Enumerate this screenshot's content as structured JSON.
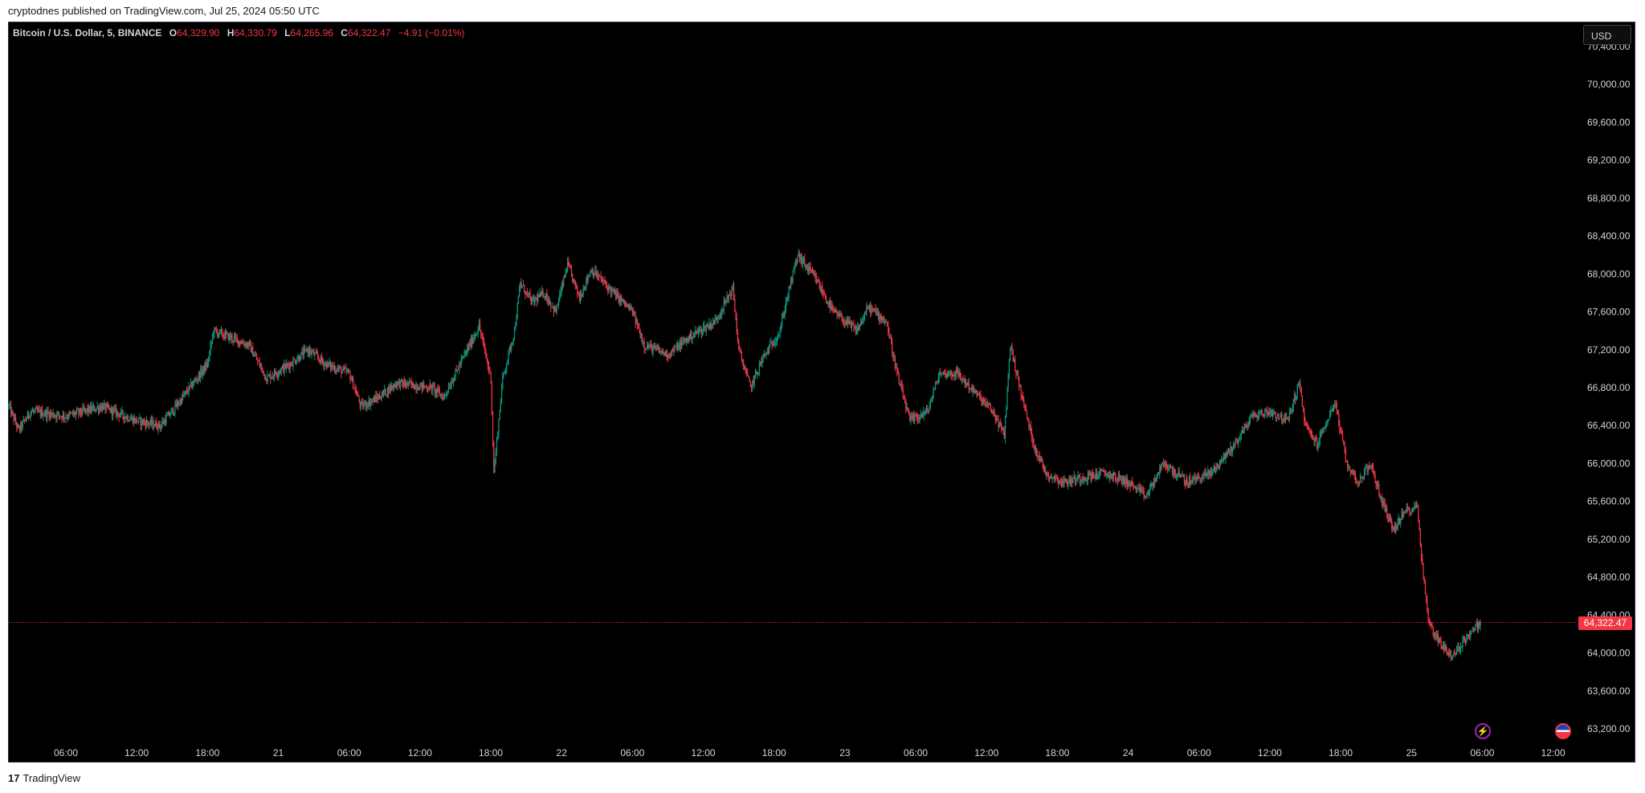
{
  "header": {
    "published_text": "cryptodnes published on TradingView.com, Jul 25, 2024 05:50 UTC"
  },
  "legend": {
    "symbol": "Bitcoin / U.S. Dollar, 5, BINANCE",
    "open_label": "O",
    "open": "64,329.90",
    "high_label": "H",
    "high": "64,330.79",
    "low_label": "L",
    "low": "64,265.96",
    "close_label": "C",
    "close": "64,322.47",
    "change": "−4.91 (−0.01%)"
  },
  "price_scale": {
    "currency": "USD",
    "last_price_label": "64,322.47"
  },
  "footer": {
    "brand": "TradingView",
    "logo_glyph": "17"
  },
  "icons": {
    "events": "lightning-icon",
    "economic": "us-flag-icon"
  },
  "colors": {
    "up": "#089981",
    "down": "#f23645",
    "background": "#000000",
    "axis_text": "#d1d4dc"
  },
  "chart_data": {
    "type": "candlestick",
    "symbol": "Bitcoin / U.S. Dollar",
    "interval": "5",
    "exchange": "BINANCE",
    "y_ticks": [
      70400,
      70000,
      69600,
      69200,
      68800,
      68400,
      68000,
      67600,
      67200,
      66800,
      66400,
      66000,
      65600,
      65200,
      64800,
      64400,
      64000,
      63600,
      63200
    ],
    "y_tick_labels": [
      "70,400.00",
      "70,000.00",
      "69,600.00",
      "69,200.00",
      "68,800.00",
      "68,400.00",
      "68,000.00",
      "67,600.00",
      "67,200.00",
      "66,800.00",
      "66,400.00",
      "66,000.00",
      "65,600.00",
      "65,200.00",
      "64,800.00",
      "64,400.00",
      "64,000.00",
      "63,600.00",
      "63,200.00"
    ],
    "ylim": [
      63100,
      70450
    ],
    "x_range": [
      "2024-07-20T01:10",
      "2024-07-25T14:00"
    ],
    "x_ticks": [
      {
        "t": "2024-07-20T06:00",
        "label": "06:00"
      },
      {
        "t": "2024-07-20T12:00",
        "label": "12:00"
      },
      {
        "t": "2024-07-20T18:00",
        "label": "18:00"
      },
      {
        "t": "2024-07-21T00:00",
        "label": "21"
      },
      {
        "t": "2024-07-21T06:00",
        "label": "06:00"
      },
      {
        "t": "2024-07-21T12:00",
        "label": "12:00"
      },
      {
        "t": "2024-07-21T18:00",
        "label": "18:00"
      },
      {
        "t": "2024-07-22T00:00",
        "label": "22"
      },
      {
        "t": "2024-07-22T06:00",
        "label": "06:00"
      },
      {
        "t": "2024-07-22T12:00",
        "label": "12:00"
      },
      {
        "t": "2024-07-22T18:00",
        "label": "18:00"
      },
      {
        "t": "2024-07-23T00:00",
        "label": "23"
      },
      {
        "t": "2024-07-23T06:00",
        "label": "06:00"
      },
      {
        "t": "2024-07-23T12:00",
        "label": "12:00"
      },
      {
        "t": "2024-07-23T18:00",
        "label": "18:00"
      },
      {
        "t": "2024-07-24T00:00",
        "label": "24"
      },
      {
        "t": "2024-07-24T06:00",
        "label": "06:00"
      },
      {
        "t": "2024-07-24T12:00",
        "label": "12:00"
      },
      {
        "t": "2024-07-24T18:00",
        "label": "18:00"
      },
      {
        "t": "2024-07-25T00:00",
        "label": "25"
      },
      {
        "t": "2024-07-25T06:00",
        "label": "06:00"
      },
      {
        "t": "2024-07-25T12:00",
        "label": "12:00"
      }
    ],
    "last_price": 64322.47,
    "series": [
      {
        "name": "Bitcoin / U.S. Dollar",
        "price_path": [
          {
            "t": "2024-07-20T01:10",
            "p": 66600
          },
          {
            "t": "2024-07-20T02:00",
            "p": 66350
          },
          {
            "t": "2024-07-20T03:00",
            "p": 66550
          },
          {
            "t": "2024-07-20T06:00",
            "p": 66500
          },
          {
            "t": "2024-07-20T09:00",
            "p": 66600
          },
          {
            "t": "2024-07-20T12:00",
            "p": 66450
          },
          {
            "t": "2024-07-20T14:00",
            "p": 66400
          },
          {
            "t": "2024-07-20T15:00",
            "p": 66550
          },
          {
            "t": "2024-07-20T16:30",
            "p": 66800
          },
          {
            "t": "2024-07-20T18:00",
            "p": 67050
          },
          {
            "t": "2024-07-20T18:30",
            "p": 67400
          },
          {
            "t": "2024-07-20T19:30",
            "p": 67350
          },
          {
            "t": "2024-07-20T21:30",
            "p": 67250
          },
          {
            "t": "2024-07-20T23:00",
            "p": 66900
          },
          {
            "t": "2024-07-21T01:00",
            "p": 67050
          },
          {
            "t": "2024-07-21T02:30",
            "p": 67200
          },
          {
            "t": "2024-07-21T04:00",
            "p": 67050
          },
          {
            "t": "2024-07-21T06:00",
            "p": 66950
          },
          {
            "t": "2024-07-21T07:00",
            "p": 66600
          },
          {
            "t": "2024-07-21T08:30",
            "p": 66700
          },
          {
            "t": "2024-07-21T10:00",
            "p": 66850
          },
          {
            "t": "2024-07-21T13:00",
            "p": 66800
          },
          {
            "t": "2024-07-21T14:00",
            "p": 66700
          },
          {
            "t": "2024-07-21T16:00",
            "p": 67200
          },
          {
            "t": "2024-07-21T17:00",
            "p": 67450
          },
          {
            "t": "2024-07-21T18:00",
            "p": 66900
          },
          {
            "t": "2024-07-21T18:15",
            "p": 65900
          },
          {
            "t": "2024-07-21T19:00",
            "p": 66900
          },
          {
            "t": "2024-07-21T20:00",
            "p": 67400
          },
          {
            "t": "2024-07-21T20:30",
            "p": 67900
          },
          {
            "t": "2024-07-21T21:30",
            "p": 67700
          },
          {
            "t": "2024-07-21T22:30",
            "p": 67800
          },
          {
            "t": "2024-07-21T23:30",
            "p": 67600
          },
          {
            "t": "2024-07-22T00:30",
            "p": 68100
          },
          {
            "t": "2024-07-22T01:30",
            "p": 67750
          },
          {
            "t": "2024-07-22T02:30",
            "p": 68050
          },
          {
            "t": "2024-07-22T04:00",
            "p": 67850
          },
          {
            "t": "2024-07-22T06:00",
            "p": 67600
          },
          {
            "t": "2024-07-22T07:00",
            "p": 67250
          },
          {
            "t": "2024-07-22T09:00",
            "p": 67150
          },
          {
            "t": "2024-07-22T11:00",
            "p": 67350
          },
          {
            "t": "2024-07-22T13:00",
            "p": 67500
          },
          {
            "t": "2024-07-22T14:30",
            "p": 67850
          },
          {
            "t": "2024-07-22T15:00",
            "p": 67200
          },
          {
            "t": "2024-07-22T16:00",
            "p": 66800
          },
          {
            "t": "2024-07-22T17:00",
            "p": 67100
          },
          {
            "t": "2024-07-22T18:30",
            "p": 67400
          },
          {
            "t": "2024-07-22T19:00",
            "p": 67700
          },
          {
            "t": "2024-07-22T20:00",
            "p": 68200
          },
          {
            "t": "2024-07-22T21:30",
            "p": 67950
          },
          {
            "t": "2024-07-22T23:00",
            "p": 67600
          },
          {
            "t": "2024-07-23T01:00",
            "p": 67400
          },
          {
            "t": "2024-07-23T02:00",
            "p": 67650
          },
          {
            "t": "2024-07-23T03:30",
            "p": 67500
          },
          {
            "t": "2024-07-23T04:30",
            "p": 66900
          },
          {
            "t": "2024-07-23T05:30",
            "p": 66450
          },
          {
            "t": "2024-07-23T07:00",
            "p": 66550
          },
          {
            "t": "2024-07-23T08:00",
            "p": 66950
          },
          {
            "t": "2024-07-23T09:30",
            "p": 66950
          },
          {
            "t": "2024-07-23T11:00",
            "p": 66750
          },
          {
            "t": "2024-07-23T12:30",
            "p": 66550
          },
          {
            "t": "2024-07-23T13:30",
            "p": 66300
          },
          {
            "t": "2024-07-23T14:00",
            "p": 67250
          },
          {
            "t": "2024-07-23T15:00",
            "p": 66700
          },
          {
            "t": "2024-07-23T16:00",
            "p": 66200
          },
          {
            "t": "2024-07-23T17:00",
            "p": 65900
          },
          {
            "t": "2024-07-23T18:30",
            "p": 65800
          },
          {
            "t": "2024-07-23T20:00",
            "p": 65850
          },
          {
            "t": "2024-07-23T22:00",
            "p": 65900
          },
          {
            "t": "2024-07-24T00:00",
            "p": 65800
          },
          {
            "t": "2024-07-24T01:30",
            "p": 65650
          },
          {
            "t": "2024-07-24T03:00",
            "p": 66000
          },
          {
            "t": "2024-07-24T05:00",
            "p": 65800
          },
          {
            "t": "2024-07-24T07:00",
            "p": 65900
          },
          {
            "t": "2024-07-24T09:00",
            "p": 66200
          },
          {
            "t": "2024-07-24T10:30",
            "p": 66500
          },
          {
            "t": "2024-07-24T12:00",
            "p": 66550
          },
          {
            "t": "2024-07-24T13:30",
            "p": 66450
          },
          {
            "t": "2024-07-24T14:30",
            "p": 66850
          },
          {
            "t": "2024-07-24T15:00",
            "p": 66400
          },
          {
            "t": "2024-07-24T16:00",
            "p": 66200
          },
          {
            "t": "2024-07-24T17:30",
            "p": 66650
          },
          {
            "t": "2024-07-24T18:30",
            "p": 66000
          },
          {
            "t": "2024-07-24T19:30",
            "p": 65800
          },
          {
            "t": "2024-07-24T20:30",
            "p": 66000
          },
          {
            "t": "2024-07-24T21:30",
            "p": 65600
          },
          {
            "t": "2024-07-24T22:30",
            "p": 65300
          },
          {
            "t": "2024-07-24T23:30",
            "p": 65500
          },
          {
            "t": "2024-07-25T00:30",
            "p": 65550
          },
          {
            "t": "2024-07-25T01:00",
            "p": 64800
          },
          {
            "t": "2024-07-25T01:30",
            "p": 64300
          },
          {
            "t": "2024-07-25T02:30",
            "p": 64100
          },
          {
            "t": "2024-07-25T03:30",
            "p": 63950
          },
          {
            "t": "2024-07-25T04:30",
            "p": 64150
          },
          {
            "t": "2024-07-25T05:50",
            "p": 64322
          }
        ]
      }
    ]
  }
}
